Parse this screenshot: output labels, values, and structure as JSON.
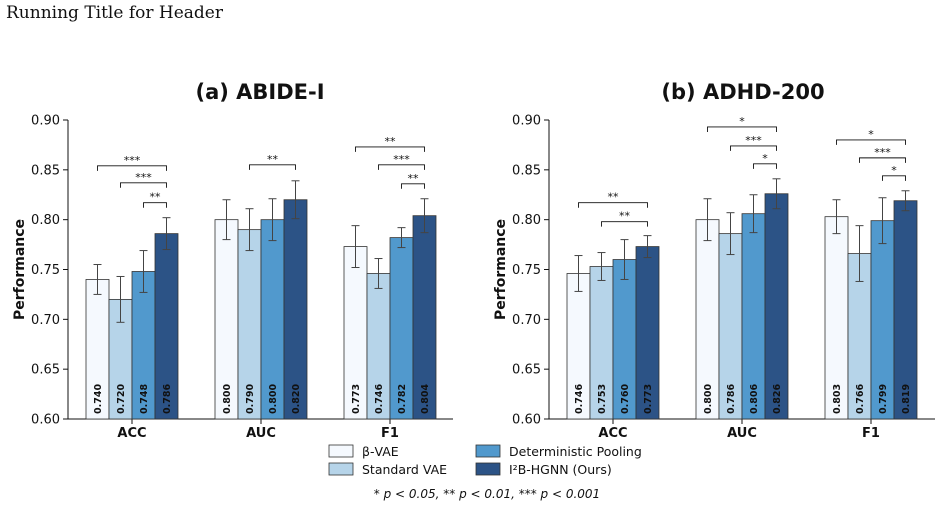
{
  "header": {
    "running_title": "Running Title for Header"
  },
  "colors": {
    "beta_vae": "#f5f9fe",
    "standard_vae": "#b6d4e9",
    "deterministic_pooling": "#5199cd",
    "ib_hgnn": "#2c5386",
    "edge": "#333333"
  },
  "legend": {
    "items": [
      {
        "label": "β-VAE",
        "color_key": "beta_vae"
      },
      {
        "label": "Standard VAE",
        "color_key": "standard_vae"
      },
      {
        "label": "Deterministic Pooling",
        "color_key": "deterministic_pooling"
      },
      {
        "label": "I²B-HGNN (Ours)",
        "color_key": "ib_hgnn"
      }
    ],
    "placement": "bottom-center"
  },
  "footnote": "* p < 0.05, ** p < 0.01, *** p < 0.001",
  "chart_data": [
    {
      "type": "bar",
      "title": "(a) ABIDE-I",
      "ylabel": "Performance",
      "ylim": [
        0.6,
        0.9
      ],
      "yticks": [
        "0.60",
        "0.65",
        "0.70",
        "0.75",
        "0.80",
        "0.85",
        "0.90"
      ],
      "categories": [
        "ACC",
        "AUC",
        "F1"
      ],
      "series": [
        {
          "name": "β-VAE",
          "values": [
            0.74,
            0.8,
            0.773
          ],
          "errors": [
            0.015,
            0.02,
            0.021
          ],
          "labels": [
            "0.740",
            "0.800",
            "0.773"
          ]
        },
        {
          "name": "Standard VAE",
          "values": [
            0.72,
            0.79,
            0.746
          ],
          "errors": [
            0.023,
            0.021,
            0.015
          ],
          "labels": [
            "0.720",
            "0.790",
            "0.746"
          ]
        },
        {
          "name": "Deterministic Pooling",
          "values": [
            0.748,
            0.8,
            0.782
          ],
          "errors": [
            0.021,
            0.021,
            0.01
          ],
          "labels": [
            "0.748",
            "0.800",
            "0.782"
          ]
        },
        {
          "name": "I²B-HGNN (Ours)",
          "values": [
            0.786,
            0.82,
            0.804
          ],
          "errors": [
            0.016,
            0.019,
            0.017
          ],
          "labels": [
            "0.786",
            "0.820",
            "0.804"
          ]
        }
      ],
      "significance": [
        {
          "category": 0,
          "from": 0,
          "level": 0.854,
          "label": "***"
        },
        {
          "category": 0,
          "from": 1,
          "level": 0.837,
          "label": "***"
        },
        {
          "category": 0,
          "from": 2,
          "level": 0.817,
          "label": "**"
        },
        {
          "category": 1,
          "from": 1,
          "level": 0.855,
          "label": "**"
        },
        {
          "category": 2,
          "from": 0,
          "level": 0.873,
          "label": "**"
        },
        {
          "category": 2,
          "from": 1,
          "level": 0.855,
          "label": "***"
        },
        {
          "category": 2,
          "from": 2,
          "level": 0.836,
          "label": "**"
        }
      ]
    },
    {
      "type": "bar",
      "title": "(b) ADHD-200",
      "ylabel": "Performance",
      "ylim": [
        0.6,
        0.9
      ],
      "yticks": [
        "0.60",
        "0.65",
        "0.70",
        "0.75",
        "0.80",
        "0.85",
        "0.90"
      ],
      "categories": [
        "ACC",
        "AUC",
        "F1"
      ],
      "series": [
        {
          "name": "β-VAE",
          "values": [
            0.746,
            0.8,
            0.803
          ],
          "errors": [
            0.018,
            0.021,
            0.017
          ],
          "labels": [
            "0.746",
            "0.800",
            "0.803"
          ]
        },
        {
          "name": "Standard VAE",
          "values": [
            0.753,
            0.786,
            0.766
          ],
          "errors": [
            0.014,
            0.021,
            0.028
          ],
          "labels": [
            "0.753",
            "0.786",
            "0.766"
          ]
        },
        {
          "name": "Deterministic Pooling",
          "values": [
            0.76,
            0.806,
            0.799
          ],
          "errors": [
            0.02,
            0.019,
            0.023
          ],
          "labels": [
            "0.760",
            "0.806",
            "0.799"
          ]
        },
        {
          "name": "I²B-HGNN (Ours)",
          "values": [
            0.773,
            0.826,
            0.819
          ],
          "errors": [
            0.011,
            0.015,
            0.01
          ],
          "labels": [
            "0.773",
            "0.826",
            "0.819"
          ]
        }
      ],
      "significance": [
        {
          "category": 0,
          "from": 0,
          "level": 0.817,
          "label": "**"
        },
        {
          "category": 0,
          "from": 1,
          "level": 0.798,
          "label": "**"
        },
        {
          "category": 1,
          "from": 0,
          "level": 0.893,
          "label": "*"
        },
        {
          "category": 1,
          "from": 1,
          "level": 0.874,
          "label": "***"
        },
        {
          "category": 1,
          "from": 2,
          "level": 0.856,
          "label": "*"
        },
        {
          "category": 2,
          "from": 0,
          "level": 0.88,
          "label": "*"
        },
        {
          "category": 2,
          "from": 1,
          "level": 0.862,
          "label": "***"
        },
        {
          "category": 2,
          "from": 2,
          "level": 0.844,
          "label": "*"
        }
      ]
    }
  ]
}
